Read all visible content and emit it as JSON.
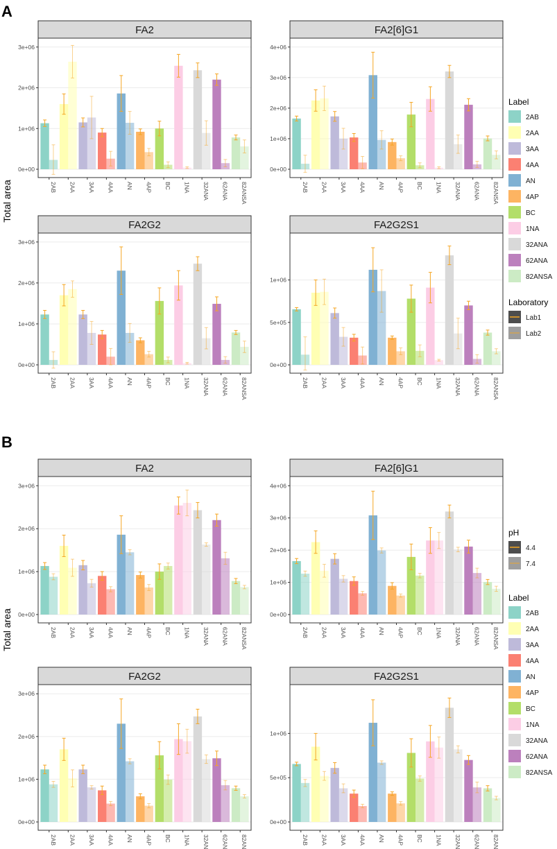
{
  "figure": {
    "y_axis_title": "Total area",
    "x_categories": [
      "2AB",
      "2AA",
      "3AA",
      "4AA",
      "AN",
      "4AP",
      "BC",
      "1NA",
      "32ANA",
      "62ANA",
      "82ANSA"
    ]
  },
  "colors": {
    "2AB": "#8DD3C7",
    "2AA": "#FFFFB3",
    "3AA": "#BEBADA",
    "4AA": "#FB8072",
    "AN": "#80B1D3",
    "4AP": "#FDB462",
    "BC": "#B3DE69",
    "1NA": "#FCCDE5",
    "32ANA": "#D9D9D9",
    "62ANA": "#BC80BD",
    "82ANSA": "#CCEBC5",
    "error_bar": "#F5A623",
    "strip_fill": "#D9D9D9",
    "panel_border": "#333333",
    "gridline": "#EBEBEB"
  },
  "legends": {
    "A": {
      "label": {
        "title": "Label",
        "items": [
          "2AB",
          "2AA",
          "3AA",
          "4AA",
          "AN",
          "4AP",
          "BC",
          "1NA",
          "32ANA",
          "62ANA",
          "82ANSA"
        ]
      },
      "secondary": {
        "title": "Laboratory",
        "items": [
          "Lab1",
          "Lab2"
        ]
      }
    },
    "B": {
      "secondary": {
        "title": "pH",
        "items": [
          "4.4",
          "7.4"
        ]
      },
      "label": {
        "title": "Label",
        "items": [
          "2AB",
          "2AA",
          "3AA",
          "4AA",
          "AN",
          "4AP",
          "BC",
          "1NA",
          "32ANA",
          "62ANA",
          "82ANSA"
        ]
      }
    }
  },
  "chart_data": [
    {
      "section": "A",
      "type": "bar",
      "title": "FA2",
      "dodge_by": "Laboratory",
      "series_names": [
        "Lab1",
        "Lab2"
      ],
      "yticks": [
        0,
        1000000,
        2000000,
        3000000
      ],
      "yticklabels": [
        "0e+00",
        "1e+06",
        "2e+06",
        "3e+06"
      ],
      "ylim": [
        0,
        3150000
      ],
      "values": [
        [
          1130000,
          230000
        ],
        [
          1600000,
          2640000
        ],
        [
          1150000,
          1270000
        ],
        [
          900000,
          260000
        ],
        [
          1860000,
          1140000
        ],
        [
          920000,
          420000
        ],
        [
          1000000,
          110000
        ],
        [
          2540000,
          40000
        ],
        [
          2430000,
          890000
        ],
        [
          2200000,
          150000
        ],
        [
          780000,
          560000
        ]
      ],
      "errors": [
        [
          80000,
          370000
        ],
        [
          250000,
          400000
        ],
        [
          110000,
          520000
        ],
        [
          100000,
          180000
        ],
        [
          440000,
          280000
        ],
        [
          70000,
          90000
        ],
        [
          180000,
          70000
        ],
        [
          280000,
          20000
        ],
        [
          180000,
          300000
        ],
        [
          140000,
          90000
        ],
        [
          60000,
          160000
        ]
      ]
    },
    {
      "section": "A",
      "type": "bar",
      "title": "FA2[6]G1",
      "dodge_by": "Laboratory",
      "series_names": [
        "Lab1",
        "Lab2"
      ],
      "yticks": [
        0,
        1000000,
        2000000,
        3000000,
        4000000
      ],
      "yticklabels": [
        "0e+00",
        "1e+06",
        "2e+06",
        "3e+06",
        "4e+06"
      ],
      "ylim": [
        0,
        4200000
      ],
      "values": [
        [
          1660000,
          180000
        ],
        [
          2250000,
          2320000
        ],
        [
          1730000,
          1000000
        ],
        [
          1040000,
          220000
        ],
        [
          3080000,
          960000
        ],
        [
          890000,
          360000
        ],
        [
          1790000,
          130000
        ],
        [
          2300000,
          50000
        ],
        [
          3200000,
          820000
        ],
        [
          2110000,
          160000
        ],
        [
          1010000,
          470000
        ]
      ],
      "errors": [
        [
          80000,
          280000
        ],
        [
          350000,
          400000
        ],
        [
          160000,
          340000
        ],
        [
          130000,
          200000
        ],
        [
          750000,
          300000
        ],
        [
          100000,
          80000
        ],
        [
          400000,
          80000
        ],
        [
          400000,
          30000
        ],
        [
          200000,
          300000
        ],
        [
          200000,
          100000
        ],
        [
          80000,
          130000
        ]
      ]
    },
    {
      "section": "A",
      "type": "bar",
      "title": "FA2G2",
      "dodge_by": "Laboratory",
      "series_names": [
        "Lab1",
        "Lab2"
      ],
      "yticks": [
        0,
        1000000,
        2000000,
        3000000
      ],
      "yticklabels": [
        "0e+00",
        "1e+06",
        "2e+06",
        "3e+06"
      ],
      "ylim": [
        0,
        3150000
      ],
      "values": [
        [
          1230000,
          120000
        ],
        [
          1700000,
          1850000
        ],
        [
          1230000,
          780000
        ],
        [
          740000,
          200000
        ],
        [
          2300000,
          780000
        ],
        [
          600000,
          260000
        ],
        [
          1560000,
          120000
        ],
        [
          1940000,
          40000
        ],
        [
          2470000,
          650000
        ],
        [
          1490000,
          120000
        ],
        [
          790000,
          440000
        ]
      ],
      "errors": [
        [
          100000,
          200000
        ],
        [
          260000,
          200000
        ],
        [
          100000,
          280000
        ],
        [
          100000,
          200000
        ],
        [
          580000,
          230000
        ],
        [
          60000,
          70000
        ],
        [
          320000,
          70000
        ],
        [
          360000,
          20000
        ],
        [
          170000,
          260000
        ],
        [
          170000,
          80000
        ],
        [
          50000,
          140000
        ]
      ]
    },
    {
      "section": "A",
      "type": "bar",
      "title": "FA2G2S1",
      "dodge_by": "Laboratory",
      "series_names": [
        "Lab1",
        "Lab2"
      ],
      "yticks": [
        0,
        500000,
        1000000
      ],
      "yticklabels": [
        "0e+00",
        "5e+05",
        "1e+06"
      ],
      "ylim": [
        0,
        1520000
      ],
      "values": [
        [
          655000,
          120000
        ],
        [
          850000,
          860000
        ],
        [
          610000,
          330000
        ],
        [
          320000,
          110000
        ],
        [
          1120000,
          870000
        ],
        [
          320000,
          160000
        ],
        [
          780000,
          165000
        ],
        [
          910000,
          55000
        ],
        [
          1290000,
          370000
        ],
        [
          700000,
          70000
        ],
        [
          380000,
          160000
        ]
      ],
      "errors": [
        [
          20000,
          210000
        ],
        [
          150000,
          150000
        ],
        [
          60000,
          110000
        ],
        [
          40000,
          100000
        ],
        [
          260000,
          250000
        ],
        [
          20000,
          40000
        ],
        [
          160000,
          70000
        ],
        [
          180000,
          10000
        ],
        [
          110000,
          180000
        ],
        [
          50000,
          50000
        ],
        [
          30000,
          30000
        ]
      ]
    },
    {
      "section": "B",
      "type": "bar",
      "title": "FA2",
      "dodge_by": "pH",
      "series_names": [
        "4.4",
        "7.4"
      ],
      "yticks": [
        0,
        1000000,
        2000000,
        3000000
      ],
      "yticklabels": [
        "0e+00",
        "1e+06",
        "2e+06",
        "3e+06"
      ],
      "ylim": [
        0,
        3150000
      ],
      "values": [
        [
          1130000,
          880000
        ],
        [
          1600000,
          1090000
        ],
        [
          1150000,
          730000
        ],
        [
          900000,
          590000
        ],
        [
          1860000,
          1450000
        ],
        [
          920000,
          630000
        ],
        [
          1000000,
          1130000
        ],
        [
          2540000,
          2600000
        ],
        [
          2430000,
          1630000
        ],
        [
          2200000,
          1310000
        ],
        [
          780000,
          640000
        ]
      ],
      "errors": [
        [
          80000,
          70000
        ],
        [
          250000,
          200000
        ],
        [
          110000,
          90000
        ],
        [
          100000,
          60000
        ],
        [
          440000,
          60000
        ],
        [
          70000,
          70000
        ],
        [
          180000,
          70000
        ],
        [
          200000,
          300000
        ],
        [
          180000,
          40000
        ],
        [
          140000,
          140000
        ],
        [
          60000,
          40000
        ]
      ]
    },
    {
      "section": "B",
      "type": "bar",
      "title": "FA2[6]G1",
      "dodge_by": "pH",
      "series_names": [
        "4.4",
        "7.4"
      ],
      "yticks": [
        0,
        1000000,
        2000000,
        3000000,
        4000000
      ],
      "yticklabels": [
        "0e+00",
        "1e+06",
        "2e+06",
        "3e+06",
        "4e+06"
      ],
      "ylim": [
        0,
        4200000
      ],
      "values": [
        [
          1660000,
          1270000
        ],
        [
          2250000,
          1360000
        ],
        [
          1730000,
          1110000
        ],
        [
          1040000,
          660000
        ],
        [
          3080000,
          1990000
        ],
        [
          890000,
          590000
        ],
        [
          1790000,
          1210000
        ],
        [
          2300000,
          2300000
        ],
        [
          3200000,
          2020000
        ],
        [
          2110000,
          1290000
        ],
        [
          1010000,
          800000
        ]
      ],
      "errors": [
        [
          80000,
          80000
        ],
        [
          350000,
          200000
        ],
        [
          160000,
          100000
        ],
        [
          130000,
          60000
        ],
        [
          750000,
          80000
        ],
        [
          100000,
          50000
        ],
        [
          400000,
          70000
        ],
        [
          400000,
          250000
        ],
        [
          200000,
          70000
        ],
        [
          200000,
          150000
        ],
        [
          80000,
          80000
        ]
      ]
    },
    {
      "section": "B",
      "type": "bar",
      "title": "FA2G2",
      "dodge_by": "pH",
      "series_names": [
        "4.4",
        "7.4"
      ],
      "yticks": [
        0,
        1000000,
        2000000,
        3000000
      ],
      "yticklabels": [
        "0e+00",
        "1e+06",
        "2e+06",
        "3e+06"
      ],
      "ylim": [
        0,
        3150000
      ],
      "values": [
        [
          1230000,
          880000
        ],
        [
          1700000,
          1020000
        ],
        [
          1230000,
          810000
        ],
        [
          740000,
          430000
        ],
        [
          2300000,
          1420000
        ],
        [
          600000,
          380000
        ],
        [
          1560000,
          990000
        ],
        [
          1940000,
          1890000
        ],
        [
          2470000,
          1470000
        ],
        [
          1490000,
          860000
        ],
        [
          790000,
          600000
        ]
      ],
      "errors": [
        [
          100000,
          70000
        ],
        [
          260000,
          200000
        ],
        [
          100000,
          40000
        ],
        [
          100000,
          50000
        ],
        [
          580000,
          60000
        ],
        [
          60000,
          50000
        ],
        [
          320000,
          110000
        ],
        [
          360000,
          280000
        ],
        [
          170000,
          100000
        ],
        [
          170000,
          110000
        ],
        [
          50000,
          40000
        ]
      ]
    },
    {
      "section": "B",
      "type": "bar",
      "title": "FA2G2S1",
      "dodge_by": "pH",
      "series_names": [
        "4.4",
        "7.4"
      ],
      "yticks": [
        0,
        500000,
        1000000
      ],
      "yticklabels": [
        "0e+00",
        "5e+05",
        "1e+06"
      ],
      "ylim": [
        0,
        1520000
      ],
      "values": [
        [
          655000,
          440000
        ],
        [
          850000,
          520000
        ],
        [
          610000,
          380000
        ],
        [
          320000,
          180000
        ],
        [
          1120000,
          670000
        ],
        [
          320000,
          210000
        ],
        [
          780000,
          490000
        ],
        [
          910000,
          840000
        ],
        [
          1290000,
          820000
        ],
        [
          700000,
          390000
        ],
        [
          380000,
          270000
        ]
      ],
      "errors": [
        [
          20000,
          40000
        ],
        [
          150000,
          50000
        ],
        [
          60000,
          50000
        ],
        [
          40000,
          20000
        ],
        [
          260000,
          20000
        ],
        [
          20000,
          20000
        ],
        [
          160000,
          30000
        ],
        [
          180000,
          120000
        ],
        [
          110000,
          40000
        ],
        [
          50000,
          60000
        ],
        [
          30000,
          20000
        ]
      ]
    }
  ]
}
